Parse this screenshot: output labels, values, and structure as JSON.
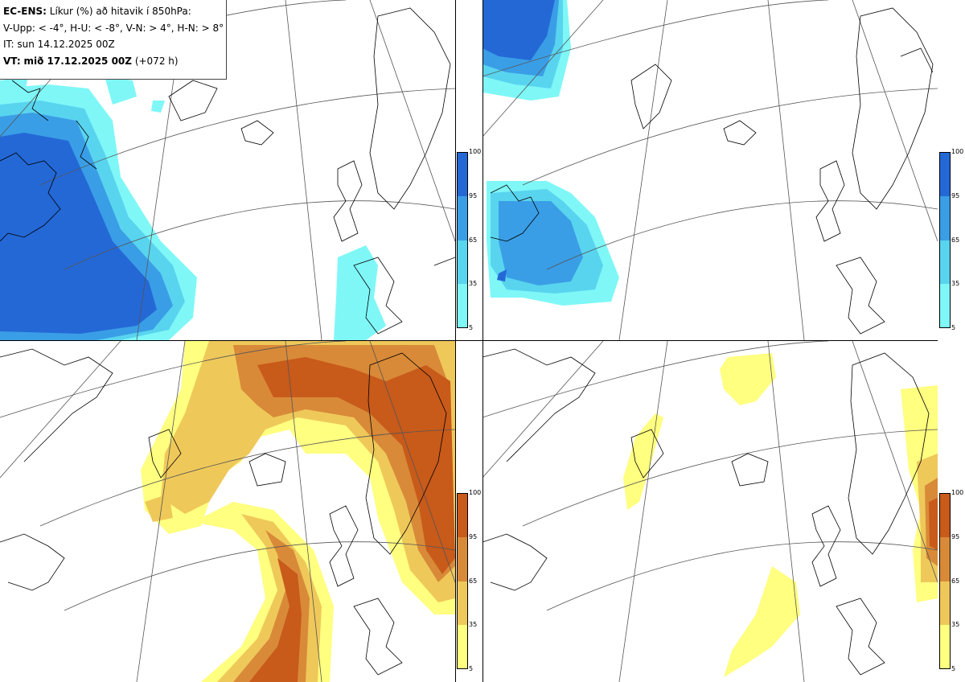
{
  "header": {
    "model": "EC-ENS:",
    "title": "Líkur (%) að hitavik í 850hPa:",
    "thresholds": "V-Upp: < -4°, H-U: < -8°, V-N: > 4°, H-N: > 8°",
    "initial_time": "IT: sun 14.12.2025 00Z",
    "valid_label": "VT:",
    "valid_time": "mið 17.12.2025 00Z",
    "lead_time": "(+072 h)"
  },
  "colorbars": {
    "cold": {
      "colors": [
        "#7ff7f7",
        "#59d4ef",
        "#3a9ee6",
        "#2468d6"
      ],
      "ticks": [
        "100",
        "95",
        "65",
        "35",
        "5"
      ]
    },
    "warm": {
      "colors": [
        "#ffff80",
        "#efc85a",
        "#d88a38",
        "#c85a1a"
      ],
      "ticks": [
        "100",
        "95",
        "65",
        "35",
        "5"
      ]
    }
  },
  "panels": [
    {
      "name": "V-Upp",
      "scale": "cold"
    },
    {
      "name": "H-U",
      "scale": "cold"
    },
    {
      "name": "V-N",
      "scale": "warm"
    },
    {
      "name": "H-N",
      "scale": "warm"
    }
  ]
}
